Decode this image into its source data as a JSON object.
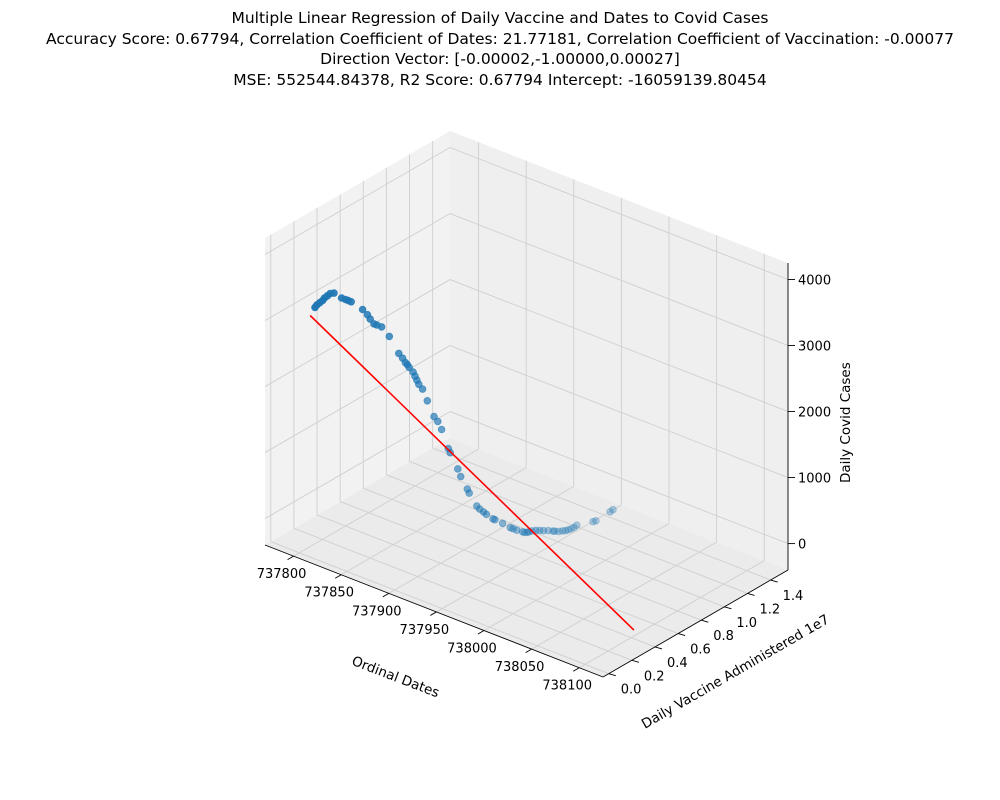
{
  "chart_data": {
    "type": "scatter",
    "projection": "3d",
    "title_lines": [
      "Multiple Linear Regression of Daily Vaccine and Dates to Covid Cases",
      "Accuracy Score: 0.67794, Correlation Coefficient of Dates: 21.77181, Correlation Coefficient of Vaccination: -0.00077",
      "Direction Vector: [-0.00002,-1.00000,0.00027]",
      "MSE: 552544.84378, R2 Score: 0.67794 Intercept: -16059139.80454"
    ],
    "xlabel": "Ordinal Dates",
    "ylabel": "Daily Vaccine Administered",
    "y_offset_label": "1e7",
    "zlabel": "Daily Covid Cases",
    "xlim": [
      737770,
      738125
    ],
    "ylim": [
      -0.05,
      1.55
    ],
    "zlim": [
      -400,
      4250
    ],
    "x_ticks": [
      "737800",
      "737850",
      "737900",
      "737950",
      "738000",
      "738050",
      "738100"
    ],
    "y_ticks": [
      "0.0",
      "0.2",
      "0.4",
      "0.6",
      "0.8",
      "1.0",
      "1.2",
      "1.4"
    ],
    "z_ticks": [
      "0",
      "1000",
      "2000",
      "3000",
      "4000"
    ],
    "grid": true,
    "point_color": "#1f77b4",
    "line_color": "#ff0000",
    "series": [
      {
        "type": "scatter",
        "x": [
          737780,
          737782,
          737785,
          737788,
          737790,
          737793,
          737796,
          737800,
          737808,
          737812,
          737815,
          737818,
          737830,
          737835,
          737838,
          737842,
          737845,
          737850,
          737858,
          737868,
          737872,
          737875,
          737877,
          737879,
          737883,
          737885,
          737887,
          737889,
          737893,
          737898,
          737905,
          737909,
          737913,
          737920,
          737922,
          737930,
          737933,
          737940,
          737942,
          737950,
          737953,
          737957,
          737960,
          737967,
          737969,
          737977,
          737985,
          737988,
          737992,
          737998,
          738000,
          738003,
          738005,
          738008,
          738012,
          738016,
          738020,
          738025,
          738030,
          738032,
          738036,
          738040,
          738043,
          738046,
          738049,
          738052,
          738055,
          738072,
          738075,
          738090,
          738093
        ],
        "y": [
          0.3,
          0.3,
          0.3,
          0.3,
          0.3,
          0.3,
          0.3,
          0.3,
          0.3,
          0.3,
          0.3,
          0.3,
          0.3,
          0.3,
          0.3,
          0.3,
          0.3,
          0.3,
          0.3,
          0.3,
          0.3,
          0.3,
          0.3,
          0.3,
          0.3,
          0.3,
          0.3,
          0.3,
          0.3,
          0.3,
          0.3,
          0.3,
          0.3,
          0.3,
          0.3,
          0.3,
          0.3,
          0.3,
          0.3,
          0.3,
          0.3,
          0.3,
          0.3,
          0.3,
          0.3,
          0.3,
          0.3,
          0.3,
          0.3,
          0.3,
          0.3,
          0.3,
          0.3,
          0.3,
          0.3,
          0.3,
          0.3,
          0.3,
          0.3,
          0.3,
          0.3,
          0.3,
          0.3,
          0.3,
          0.3,
          0.3,
          0.3,
          0.3,
          0.3,
          0.3,
          0.3
        ],
        "z": [
          2900,
          2950,
          3000,
          3050,
          3100,
          3150,
          3200,
          3230,
          3200,
          3200,
          3200,
          3200,
          3150,
          3100,
          3050,
          3000,
          3000,
          3000,
          2900,
          2700,
          2650,
          2600,
          2580,
          2550,
          2500,
          2450,
          2400,
          2350,
          2300,
          2150,
          1950,
          1900,
          1800,
          1550,
          1500,
          1300,
          1200,
          1050,
          1000,
          850,
          820,
          800,
          780,
          750,
          750,
          740,
          720,
          720,
          720,
          730,
          730,
          750,
          770,
          800,
          830,
          850,
          870,
          900,
          920,
          930,
          950,
          980,
          1000,
          1030,
          1060,
          1100,
          1150,
          1300,
          1330,
          1550,
          1600
        ]
      },
      {
        "type": "line",
        "x": [
          737775,
          738115
        ],
        "y": [
          0.3,
          0.3
        ],
        "z": [
          2750,
          -100
        ]
      }
    ]
  }
}
